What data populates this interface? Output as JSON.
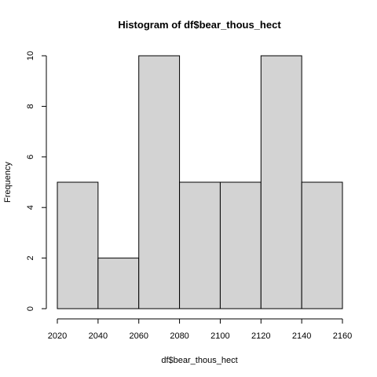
{
  "chart_data": {
    "type": "bar",
    "title": "Histogram of df$bear_thous_hect",
    "xlabel": "df$bear_thous_hect",
    "ylabel": "Frequency",
    "bins": [
      {
        "start": 2020,
        "end": 2040,
        "count": 5
      },
      {
        "start": 2040,
        "end": 2060,
        "count": 2
      },
      {
        "start": 2060,
        "end": 2080,
        "count": 10
      },
      {
        "start": 2080,
        "end": 2100,
        "count": 5
      },
      {
        "start": 2100,
        "end": 2120,
        "count": 5
      },
      {
        "start": 2120,
        "end": 2140,
        "count": 10
      },
      {
        "start": 2140,
        "end": 2160,
        "count": 5
      }
    ],
    "xticks": [
      2020,
      2040,
      2060,
      2080,
      2100,
      2120,
      2140,
      2160
    ],
    "yticks": [
      0,
      2,
      4,
      6,
      8,
      10
    ],
    "xlim": [
      2020,
      2160
    ],
    "ylim": [
      0,
      10
    ],
    "bar_color": "#d3d3d3",
    "grid": false
  }
}
